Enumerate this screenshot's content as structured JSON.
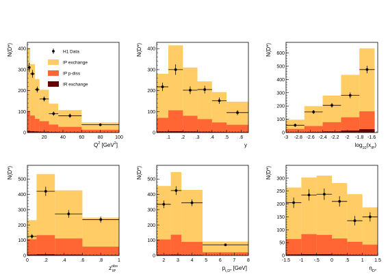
{
  "figure": {
    "legend": {
      "entries": [
        {
          "label": "H1 Data",
          "kind": "data"
        },
        {
          "label": "IP exchange",
          "kind": "fill",
          "color": "#ffcc66"
        },
        {
          "label": "IP p-diss",
          "kind": "fill",
          "color": "#ff6633"
        },
        {
          "label": "IR exchange",
          "kind": "fill",
          "color": "#660000"
        }
      ]
    }
  },
  "chart_data": [
    {
      "type": "bar",
      "ylabel": "N(D*)",
      "xlabel_main": "Q",
      "xlabel_sup": "2",
      "xlabel_rest": " [GeV",
      "xlabel_sup2": "2",
      "xlabel_end": "]",
      "xlim": [
        2,
        100
      ],
      "ylim": [
        0,
        430
      ],
      "xticks": [
        20,
        40,
        60,
        80,
        100
      ],
      "yticks": [
        0,
        100,
        200,
        300,
        400
      ],
      "bins": [
        2,
        5,
        10,
        15,
        25,
        35,
        60,
        100
      ],
      "stack": {
        "IP exchange": [
          300,
          245,
          190,
          150,
          100,
          80,
          35
        ],
        "IP p-diss": [
          95,
          75,
          60,
          50,
          35,
          25,
          12
        ],
        "IR exchange": [
          8,
          6,
          5,
          4,
          3,
          2,
          1
        ]
      },
      "data": {
        "x": [
          4,
          7.5,
          12.5,
          20,
          30,
          47.5,
          80
        ],
        "y": [
          310,
          280,
          205,
          160,
          90,
          80,
          37
        ],
        "yerr": [
          22,
          18,
          14,
          12,
          10,
          10,
          6
        ]
      }
    },
    {
      "type": "bar",
      "ylabel": "N(D*)",
      "xlabel": "y",
      "xlim": [
        0.02,
        0.65
      ],
      "ylim": [
        0,
        430
      ],
      "xticks": [
        0.1,
        0.2,
        0.3,
        0.4,
        0.5,
        0.6
      ],
      "yticks": [
        0,
        100,
        200,
        300,
        400
      ],
      "bins": [
        0.02,
        0.1,
        0.2,
        0.3,
        0.4,
        0.5,
        0.65
      ],
      "stack": {
        "IP exchange": [
          210,
          310,
          230,
          180,
          145,
          110
        ],
        "IP p-diss": [
          65,
          100,
          75,
          60,
          45,
          35
        ],
        "IR exchange": [
          5,
          6,
          5,
          4,
          3,
          2
        ]
      },
      "data": {
        "x": [
          0.06,
          0.15,
          0.25,
          0.35,
          0.45,
          0.575
        ],
        "y": [
          218,
          300,
          202,
          205,
          152,
          95
        ],
        "yerr": [
          20,
          25,
          18,
          18,
          15,
          12
        ]
      }
    },
    {
      "type": "bar",
      "ylabel": "N(D*)",
      "xlabel_main": "log",
      "xlabel_sub": "10",
      "xlabel_rest": "(x",
      "xlabel_sub2": "IP",
      "xlabel_end": ")",
      "xlim": [
        -3,
        -1.5
      ],
      "ylim": [
        0,
        680
      ],
      "xticks": [
        -3,
        -2.8,
        -2.6,
        -2.4,
        -2.2,
        -2,
        -1.8,
        -1.6
      ],
      "yticks": [
        0,
        100,
        200,
        300,
        400,
        500,
        600
      ],
      "bins": [
        -3,
        -2.7,
        -2.4,
        -2.1,
        -1.8,
        -1.55
      ],
      "stack": {
        "IP exchange": [
          70,
          150,
          200,
          320,
          475
        ],
        "IP p-diss": [
          25,
          45,
          70,
          100,
          135
        ],
        "IR exchange": [
          2,
          4,
          8,
          15,
          25
        ]
      },
      "data": {
        "x": [
          -2.85,
          -2.55,
          -2.25,
          -1.95,
          -1.675
        ],
        "y": [
          55,
          155,
          205,
          280,
          475
        ],
        "yerr": [
          12,
          15,
          18,
          22,
          28
        ]
      }
    },
    {
      "type": "bar",
      "ylabel": "N(D*)",
      "xlabel_main": "z",
      "xlabel_sup": "obs",
      "xlabel_sub": "IP",
      "xlim": [
        0,
        1
      ],
      "ylim": [
        0,
        590
      ],
      "xticks": [
        0,
        0.2,
        0.4,
        0.6,
        0.8,
        1
      ],
      "yticks": [
        0,
        100,
        200,
        300,
        400,
        500
      ],
      "bins": [
        0,
        0.1,
        0.3,
        0.6,
        1.0
      ],
      "stack": {
        "IP exchange": [
          125,
          400,
          315,
          190
        ],
        "IP p-diss": [
          100,
          125,
          105,
          55
        ],
        "IR exchange": [
          6,
          8,
          6,
          3
        ]
      },
      "data": {
        "x": [
          0.05,
          0.2,
          0.45,
          0.8
        ],
        "y": [
          125,
          420,
          272,
          235
        ],
        "yerr": [
          15,
          30,
          25,
          20
        ]
      }
    },
    {
      "type": "bar",
      "ylabel": "N(D*)",
      "xlabel_main": "p",
      "xlabel_sub": "t,D*",
      "xlabel_rest": " [GeV]",
      "xlim": [
        1.5,
        8
      ],
      "ylim": [
        0,
        590
      ],
      "xticks": [
        2,
        3,
        4,
        5,
        6,
        7,
        8
      ],
      "yticks": [
        0,
        100,
        200,
        300,
        400,
        500
      ],
      "bins": [
        1.5,
        2.5,
        3.25,
        4.75,
        8
      ],
      "stack": {
        "IP exchange": [
          350,
          410,
          340,
          70
        ],
        "IP p-diss": [
          100,
          130,
          85,
          20
        ],
        "IR exchange": [
          5,
          6,
          4,
          1
        ]
      },
      "data": {
        "x": [
          2,
          2.875,
          4,
          6.375
        ],
        "y": [
          335,
          425,
          345,
          70
        ],
        "yerr": [
          25,
          28,
          22,
          8
        ]
      }
    },
    {
      "type": "bar",
      "ylabel": "N(D*)",
      "xlabel_main": "η",
      "xlabel_sub": "D*",
      "xlim": [
        -1.5,
        1.5
      ],
      "ylim": [
        0,
        350
      ],
      "xticks": [
        -1.5,
        -1,
        -0.5,
        0,
        0.5,
        1,
        1.5
      ],
      "yticks": [
        0,
        50,
        100,
        150,
        200,
        250,
        300
      ],
      "bins": [
        -1.5,
        -1.0,
        -0.5,
        0,
        0.5,
        1.0,
        1.5
      ],
      "stack": {
        "IP exchange": [
          200,
          220,
          230,
          215,
          185,
          145
        ],
        "IP p-diss": [
          60,
          78,
          75,
          62,
          50,
          40
        ],
        "IR exchange": [
          4,
          5,
          5,
          4,
          3,
          2
        ]
      },
      "data": {
        "x": [
          -1.25,
          -0.75,
          -0.25,
          0.25,
          0.75,
          1.25
        ],
        "y": [
          205,
          235,
          238,
          210,
          135,
          150
        ],
        "yerr": [
          20,
          22,
          22,
          20,
          18,
          18
        ]
      }
    }
  ]
}
